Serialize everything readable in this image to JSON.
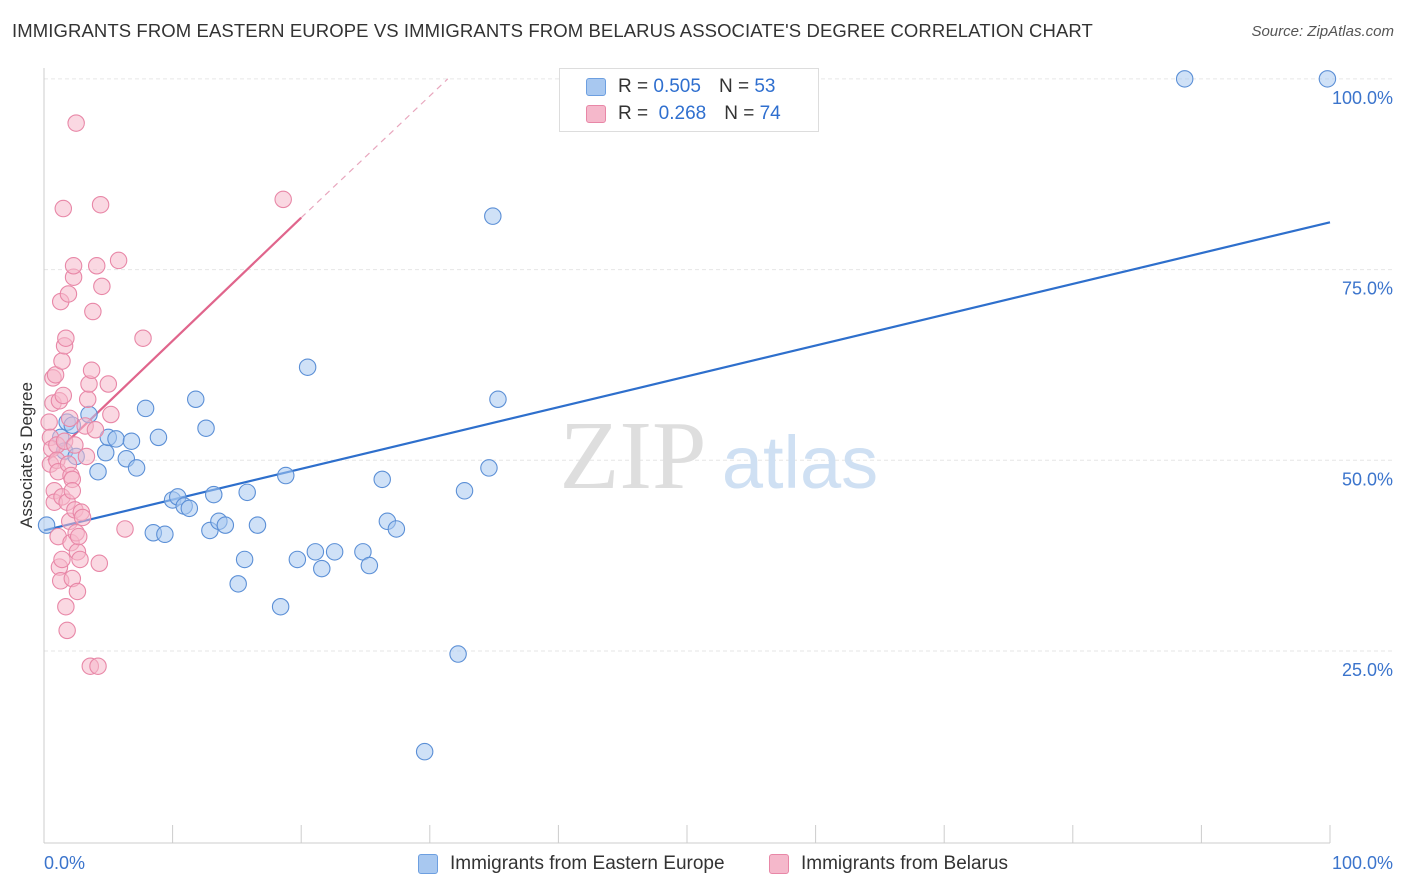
{
  "title": "IMMIGRANTS FROM EASTERN EUROPE VS IMMIGRANTS FROM BELARUS ASSOCIATE'S DEGREE CORRELATION CHART",
  "source": "Source: ZipAtlas.com",
  "watermark": {
    "zip": "ZIP",
    "atlas": "atlas"
  },
  "legend": {
    "series": [
      {
        "r_label": "R =",
        "r_value": "0.505",
        "n_label": "N =",
        "n_value": "53",
        "color": "#a8c8f0",
        "stroke": "#6d9fe0"
      },
      {
        "r_label": "R =",
        "r_value": "0.268",
        "n_label": "N =",
        "n_value": "74",
        "color": "#f5b8cb",
        "stroke": "#e887a7"
      }
    ]
  },
  "chart_data": {
    "type": "scatter",
    "title": "IMMIGRANTS FROM EASTERN EUROPE VS IMMIGRANTS FROM BELARUS ASSOCIATE'S DEGREE CORRELATION CHART",
    "xlabel": "",
    "ylabel": "Associate's Degree",
    "xlim": [
      0,
      100
    ],
    "ylim": [
      0,
      102
    ],
    "x_tick_labels": [
      "0.0%",
      "100.0%"
    ],
    "y_ticks": [
      25,
      50,
      75,
      100
    ],
    "y_tick_labels": [
      "25.0%",
      "50.0%",
      "75.0%",
      "100.0%"
    ],
    "grid": true,
    "legend_position": "top-center",
    "series": [
      {
        "name": "Immigrants from Eastern Europe",
        "color": "#a8c8f0",
        "stroke": "#5b8fd6",
        "line_color": "#2e6fcc",
        "trend": {
          "x": [
            0,
            100
          ],
          "y": [
            40.8,
            81.2
          ]
        },
        "points": [
          [
            0.2,
            41.5
          ],
          [
            1.3,
            53.0
          ],
          [
            1.6,
            51.2
          ],
          [
            1.8,
            55.0
          ],
          [
            2.2,
            54.6
          ],
          [
            2.5,
            50.5
          ],
          [
            3.5,
            56.0
          ],
          [
            4.2,
            48.5
          ],
          [
            4.8,
            51.0
          ],
          [
            5.0,
            53.0
          ],
          [
            5.6,
            52.8
          ],
          [
            6.4,
            50.2
          ],
          [
            6.8,
            52.5
          ],
          [
            7.2,
            49.0
          ],
          [
            7.9,
            56.8
          ],
          [
            8.5,
            40.5
          ],
          [
            8.9,
            53.0
          ],
          [
            9.4,
            40.3
          ],
          [
            10.0,
            44.8
          ],
          [
            10.4,
            45.2
          ],
          [
            10.9,
            44.0
          ],
          [
            11.3,
            43.7
          ],
          [
            11.8,
            58.0
          ],
          [
            12.6,
            54.2
          ],
          [
            12.9,
            40.8
          ],
          [
            13.2,
            45.5
          ],
          [
            13.6,
            42.0
          ],
          [
            14.1,
            41.5
          ],
          [
            15.1,
            33.8
          ],
          [
            15.6,
            37.0
          ],
          [
            15.8,
            45.8
          ],
          [
            16.6,
            41.5
          ],
          [
            18.4,
            30.8
          ],
          [
            18.8,
            48.0
          ],
          [
            19.7,
            37.0
          ],
          [
            20.5,
            62.2
          ],
          [
            21.1,
            38.0
          ],
          [
            21.6,
            35.8
          ],
          [
            22.6,
            38.0
          ],
          [
            24.8,
            38.0
          ],
          [
            25.3,
            36.2
          ],
          [
            26.3,
            47.5
          ],
          [
            26.7,
            42.0
          ],
          [
            27.4,
            41.0
          ],
          [
            29.6,
            11.8
          ],
          [
            32.2,
            24.6
          ],
          [
            32.7,
            46.0
          ],
          [
            34.6,
            49.0
          ],
          [
            34.9,
            82.0
          ],
          [
            35.3,
            58.0
          ],
          [
            88.7,
            100.0
          ],
          [
            99.8,
            100.0
          ]
        ]
      },
      {
        "name": "Immigrants from Belarus",
        "color": "#f5b8cb",
        "stroke": "#e887a7",
        "line_color": "#e0658c",
        "trend": {
          "x": [
            0.3,
            20.0
          ],
          "y": [
            50.0,
            81.8
          ]
        },
        "trend_extended": {
          "x": [
            20.0,
            31.4
          ],
          "y": [
            81.8,
            100.0
          ]
        },
        "points": [
          [
            0.4,
            55.0
          ],
          [
            0.5,
            53.0
          ],
          [
            0.5,
            49.5
          ],
          [
            0.6,
            51.5
          ],
          [
            0.7,
            60.8
          ],
          [
            0.7,
            57.5
          ],
          [
            0.8,
            46.0
          ],
          [
            0.8,
            44.5
          ],
          [
            0.9,
            61.2
          ],
          [
            1.0,
            52.0
          ],
          [
            1.0,
            50.0
          ],
          [
            1.1,
            48.5
          ],
          [
            1.1,
            40.0
          ],
          [
            1.2,
            57.8
          ],
          [
            1.2,
            36.0
          ],
          [
            1.3,
            70.8
          ],
          [
            1.3,
            34.2
          ],
          [
            1.4,
            63.0
          ],
          [
            1.4,
            45.2
          ],
          [
            1.4,
            37.0
          ],
          [
            1.5,
            83.0
          ],
          [
            1.5,
            58.5
          ],
          [
            1.6,
            65.0
          ],
          [
            1.6,
            52.5
          ],
          [
            1.7,
            66.0
          ],
          [
            1.7,
            30.8
          ],
          [
            1.8,
            27.7
          ],
          [
            1.8,
            44.5
          ],
          [
            1.9,
            71.8
          ],
          [
            1.9,
            49.5
          ],
          [
            2.0,
            55.5
          ],
          [
            2.0,
            42.0
          ],
          [
            2.1,
            39.2
          ],
          [
            2.1,
            48.0
          ],
          [
            2.2,
            47.5
          ],
          [
            2.2,
            34.5
          ],
          [
            2.2,
            46.0
          ],
          [
            2.3,
            74.0
          ],
          [
            2.3,
            75.5
          ],
          [
            2.4,
            52.0
          ],
          [
            2.4,
            43.5
          ],
          [
            2.5,
            94.2
          ],
          [
            2.5,
            40.5
          ],
          [
            2.6,
            38.0
          ],
          [
            2.6,
            32.8
          ],
          [
            2.7,
            40.0
          ],
          [
            2.8,
            37.0
          ],
          [
            2.9,
            43.2
          ],
          [
            3.0,
            42.5
          ],
          [
            3.2,
            54.5
          ],
          [
            3.3,
            50.5
          ],
          [
            3.4,
            58.0
          ],
          [
            3.5,
            60.0
          ],
          [
            3.6,
            23.0
          ],
          [
            3.7,
            61.8
          ],
          [
            3.8,
            69.5
          ],
          [
            4.0,
            54.0
          ],
          [
            4.1,
            75.5
          ],
          [
            4.2,
            23.0
          ],
          [
            4.3,
            36.5
          ],
          [
            4.4,
            83.5
          ],
          [
            4.5,
            72.8
          ],
          [
            5.0,
            60.0
          ],
          [
            5.2,
            56.0
          ],
          [
            5.8,
            76.2
          ],
          [
            6.3,
            41.0
          ],
          [
            7.7,
            66.0
          ],
          [
            18.6,
            84.2
          ]
        ]
      }
    ]
  },
  "bottom_legend": [
    {
      "label": "Immigrants from Eastern Europe"
    },
    {
      "label": "Immigrants from Belarus"
    }
  ]
}
